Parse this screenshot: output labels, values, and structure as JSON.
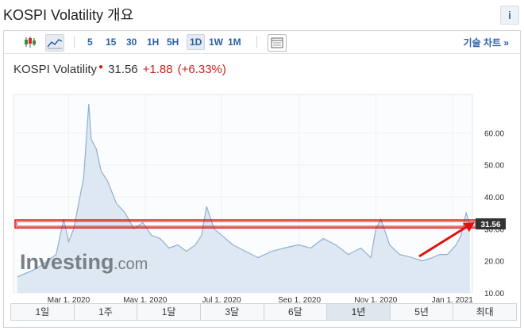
{
  "page": {
    "title": "KOSPI Volatility 개요",
    "info_label": "i"
  },
  "toolbar": {
    "intervals": [
      "5",
      "15",
      "30",
      "1H",
      "5H",
      "1D",
      "1W",
      "1M"
    ],
    "active_interval": "1D",
    "advanced_label": "기술 차트 »",
    "icons": [
      "candlestick-icon",
      "line-chart-icon",
      "table-icon"
    ]
  },
  "quote": {
    "name": "KOSPI Volatility",
    "price": "31.56",
    "change": "+1.88",
    "change_pct": "(+6.33%)"
  },
  "ranges": {
    "tabs": [
      "1일",
      "1주",
      "1달",
      "3달",
      "6달",
      "1년",
      "5년",
      "최대"
    ],
    "active": "1년"
  },
  "watermark": {
    "brand": "Investing",
    "suffix": ".com"
  },
  "colors": {
    "accent": "#2a5ea8",
    "down_red": "#d02020",
    "area_fill": "#dde8f3",
    "area_line": "#8fb0d1",
    "annotation_red": "#e01010"
  },
  "chart_data": {
    "type": "area",
    "title": "KOSPI Volatility",
    "x": [
      "2020-01-20",
      "2020-02-01",
      "2020-02-10",
      "2020-02-20",
      "2020-02-26",
      "2020-03-01",
      "2020-03-05",
      "2020-03-10",
      "2020-03-13",
      "2020-03-17",
      "2020-03-19",
      "2020-03-23",
      "2020-03-27",
      "2020-04-01",
      "2020-04-08",
      "2020-04-15",
      "2020-04-22",
      "2020-04-29",
      "2020-05-06",
      "2020-05-13",
      "2020-05-20",
      "2020-05-27",
      "2020-06-03",
      "2020-06-10",
      "2020-06-15",
      "2020-06-19",
      "2020-06-25",
      "2020-07-01",
      "2020-07-10",
      "2020-07-20",
      "2020-07-30",
      "2020-08-10",
      "2020-08-20",
      "2020-08-31",
      "2020-09-10",
      "2020-09-20",
      "2020-09-30",
      "2020-10-10",
      "2020-10-20",
      "2020-10-28",
      "2020-11-01",
      "2020-11-05",
      "2020-11-12",
      "2020-11-20",
      "2020-11-30",
      "2020-12-08",
      "2020-12-16",
      "2020-12-22",
      "2020-12-28",
      "2021-01-04",
      "2021-01-08",
      "2021-01-12",
      "2021-01-15"
    ],
    "y": [
      15,
      17,
      19,
      22,
      33,
      26,
      30,
      40,
      46,
      69,
      58,
      55,
      48,
      45,
      38,
      35,
      30,
      32,
      28,
      27,
      24,
      25,
      23,
      25,
      28,
      37,
      30,
      28,
      25,
      23,
      21,
      23,
      24,
      25,
      24,
      27,
      25,
      22,
      24,
      21,
      30,
      33,
      25,
      22,
      21,
      20,
      21,
      22,
      22,
      25,
      28,
      35,
      31.56
    ],
    "x_tick_labels": [
      "Mar 1, 2020",
      "May 1, 2020",
      "Jul 1, 2020",
      "Sep 1, 2020",
      "Nov 1, 2020",
      "Jan 1, 2021"
    ],
    "y_ticks": [
      "10.00",
      "20.00",
      "30.00",
      "40.00",
      "50.00",
      "60.00"
    ],
    "ylim": [
      10,
      72
    ],
    "last_value_label": "31.56",
    "horizontal_marker": 31.56,
    "grid": true
  }
}
